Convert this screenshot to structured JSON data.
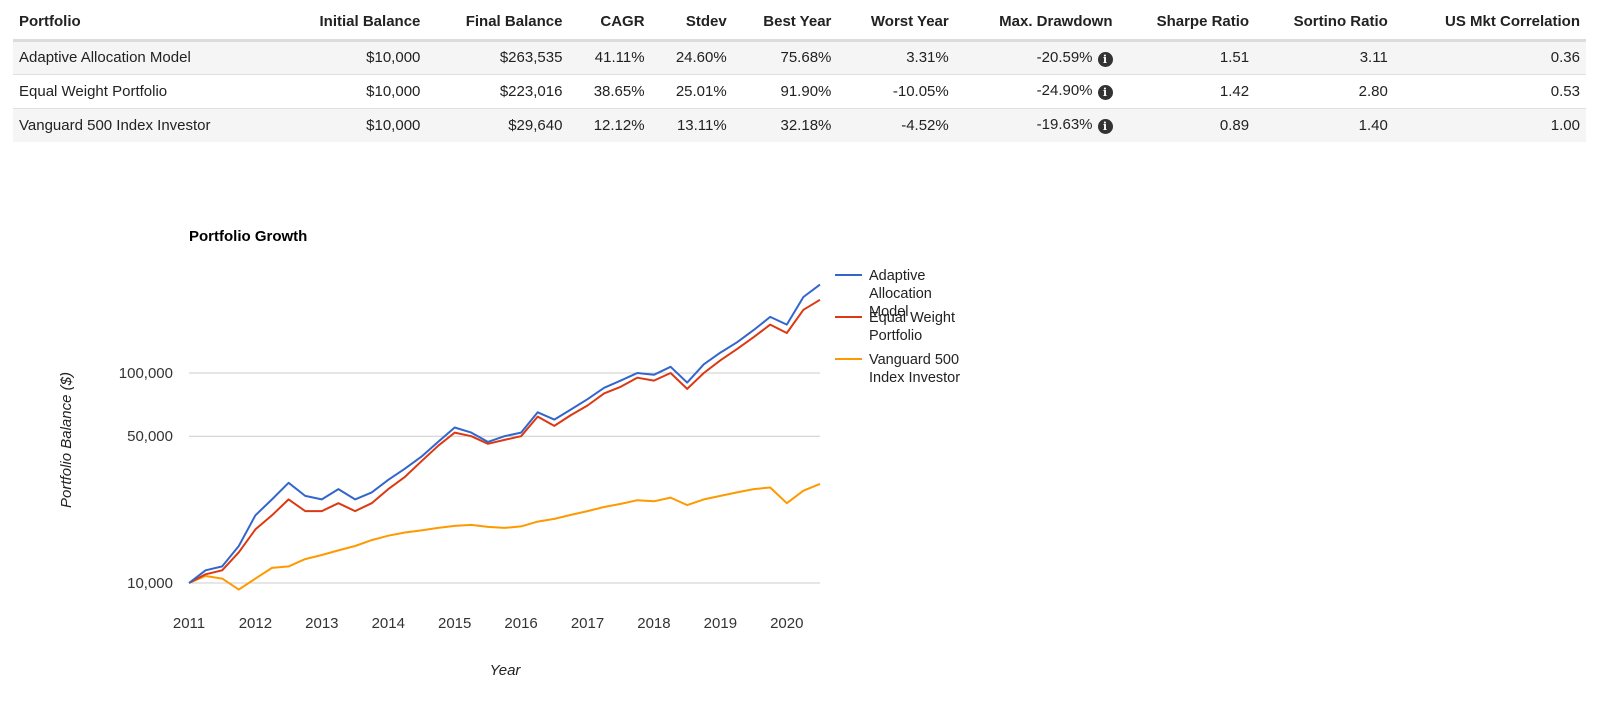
{
  "table": {
    "headers": [
      "Portfolio",
      "Initial Balance",
      "Final Balance",
      "CAGR",
      "Stdev",
      "Best Year",
      "Worst Year",
      "Max. Drawdown",
      "Sharpe Ratio",
      "Sortino Ratio",
      "US Mkt Correlation"
    ],
    "rows": [
      [
        "Adaptive Allocation Model",
        "$10,000",
        "$263,535",
        "41.11%",
        "24.60%",
        "75.68%",
        "3.31%",
        "-20.59%",
        "1.51",
        "3.11",
        "0.36"
      ],
      [
        "Equal Weight Portfolio",
        "$10,000",
        "$223,016",
        "38.65%",
        "25.01%",
        "91.90%",
        "-10.05%",
        "-24.90%",
        "1.42",
        "2.80",
        "0.53"
      ],
      [
        "Vanguard 500 Index Investor",
        "$10,000",
        "$29,640",
        "12.12%",
        "13.11%",
        "32.18%",
        "-4.52%",
        "-19.63%",
        "0.89",
        "1.40",
        "1.00"
      ]
    ],
    "info_icon": "info-circle-icon"
  },
  "chart_data": {
    "type": "line",
    "title": "Portfolio Growth",
    "xlabel": "Year",
    "ylabel": "Portfolio Balance ($)",
    "y_scale": "log",
    "ylim": [
      9000,
      300000
    ],
    "xlim": [
      2011.0,
      2020.5
    ],
    "yticks": [
      10000,
      50000,
      100000
    ],
    "ytick_labels": [
      "10,000",
      "50,000",
      "100,000"
    ],
    "xticks": [
      2011,
      2012,
      2013,
      2014,
      2015,
      2016,
      2017,
      2018,
      2019,
      2020
    ],
    "xtick_labels": [
      "2011",
      "2012",
      "2013",
      "2014",
      "2015",
      "2016",
      "2017",
      "2018",
      "2019",
      "2020"
    ],
    "grid": "horizontal",
    "legend": "right",
    "x": [
      2011.0,
      2011.25,
      2011.5,
      2011.75,
      2012.0,
      2012.25,
      2012.5,
      2012.75,
      2013.0,
      2013.25,
      2013.5,
      2013.75,
      2014.0,
      2014.25,
      2014.5,
      2014.75,
      2015.0,
      2015.25,
      2015.5,
      2015.75,
      2016.0,
      2016.25,
      2016.5,
      2016.75,
      2017.0,
      2017.25,
      2017.5,
      2017.75,
      2018.0,
      2018.25,
      2018.5,
      2018.75,
      2019.0,
      2019.25,
      2019.5,
      2019.75,
      2020.0,
      2020.25,
      2020.5
    ],
    "series": [
      {
        "name": "Adaptive Allocation Model",
        "color": "#3366cc",
        "values": [
          10000,
          11500,
          12000,
          15000,
          21000,
          25000,
          30000,
          26000,
          25000,
          28000,
          25000,
          27000,
          31000,
          35000,
          40000,
          47000,
          55000,
          52000,
          47000,
          50000,
          52000,
          65000,
          60000,
          67000,
          75000,
          85000,
          92000,
          100000,
          98000,
          107000,
          90000,
          110000,
          125000,
          140000,
          160000,
          185000,
          170000,
          230000,
          263535
        ]
      },
      {
        "name": "Equal Weight Portfolio",
        "color": "#dc3912",
        "values": [
          10000,
          11000,
          11500,
          14000,
          18000,
          21000,
          25000,
          22000,
          22000,
          24000,
          22000,
          24000,
          28000,
          32000,
          38000,
          45000,
          52000,
          50000,
          46000,
          48000,
          50000,
          62000,
          56000,
          63000,
          70000,
          80000,
          86000,
          95000,
          92000,
          100000,
          84000,
          100000,
          115000,
          130000,
          148000,
          170000,
          155000,
          200000,
          223016
        ]
      },
      {
        "name": "Vanguard 500 Index Investor",
        "color": "#ff9900",
        "values": [
          10000,
          10800,
          10500,
          9300,
          10500,
          11800,
          12000,
          13000,
          13600,
          14300,
          15000,
          16000,
          16800,
          17400,
          17800,
          18300,
          18700,
          18900,
          18500,
          18300,
          18600,
          19600,
          20200,
          21100,
          22000,
          23000,
          23800,
          24800,
          24500,
          25500,
          23500,
          25000,
          26000,
          27000,
          28000,
          28500,
          24000,
          27500,
          29640
        ]
      }
    ]
  }
}
